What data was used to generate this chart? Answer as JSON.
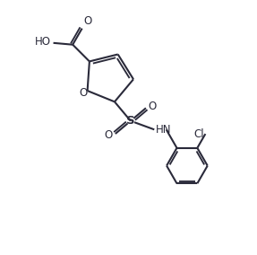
{
  "background_color": "#ffffff",
  "line_color": "#2a2a3a",
  "line_width": 1.5,
  "font_size": 8.5,
  "figsize": [
    2.87,
    2.84
  ],
  "dpi": 100,
  "xlim": [
    0,
    10
  ],
  "ylim": [
    0,
    10
  ]
}
